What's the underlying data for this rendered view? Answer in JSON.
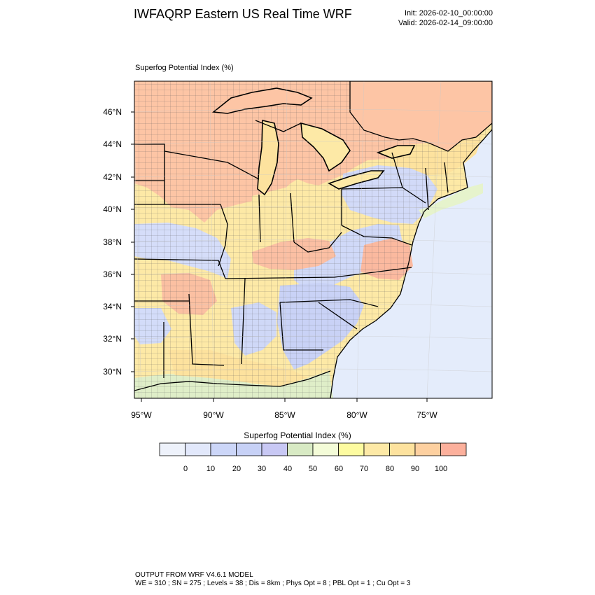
{
  "header": {
    "title": "IWFAQRP Eastern US Real Time WRF",
    "init": "Init: 2026-02-10_00:00:00",
    "valid": "Valid: 2026-02-14_09:00:00"
  },
  "field_label": "Superfog Potential Index   (%)",
  "map": {
    "lat_labels": [
      "46°N",
      "44°N",
      "42°N",
      "40°N",
      "38°N",
      "36°N",
      "34°N",
      "32°N",
      "30°N"
    ],
    "lon_labels": [
      "95°W",
      "90°W",
      "85°W",
      "80°W",
      "75°W"
    ],
    "ocean_color": "#e4ecfb",
    "land_outside_color": "#fbc4ad"
  },
  "colorbar": {
    "title": "Superfog Potential Index  (%)",
    "labels": [
      "0",
      "10",
      "20",
      "30",
      "40",
      "50",
      "60",
      "70",
      "80",
      "90",
      "100"
    ],
    "colors": [
      "#eef2fb",
      "#e2e8fb",
      "#ccd6f8",
      "#c7d1f6",
      "#c8c8f4",
      "#d8eac4",
      "#f4fcd8",
      "#fdfba0",
      "#fde9a6",
      "#fde29e",
      "#fdd0a0",
      "#fcb09c"
    ]
  },
  "footer": {
    "line1": "OUTPUT FROM WRF V4.6.1 MODEL",
    "line2": "WE = 310 ; SN = 275 ; Levels = 38 ; Dis = 8km ; Phys Opt = 8 ; PBL Opt = 1 ; Cu Opt = 3"
  }
}
